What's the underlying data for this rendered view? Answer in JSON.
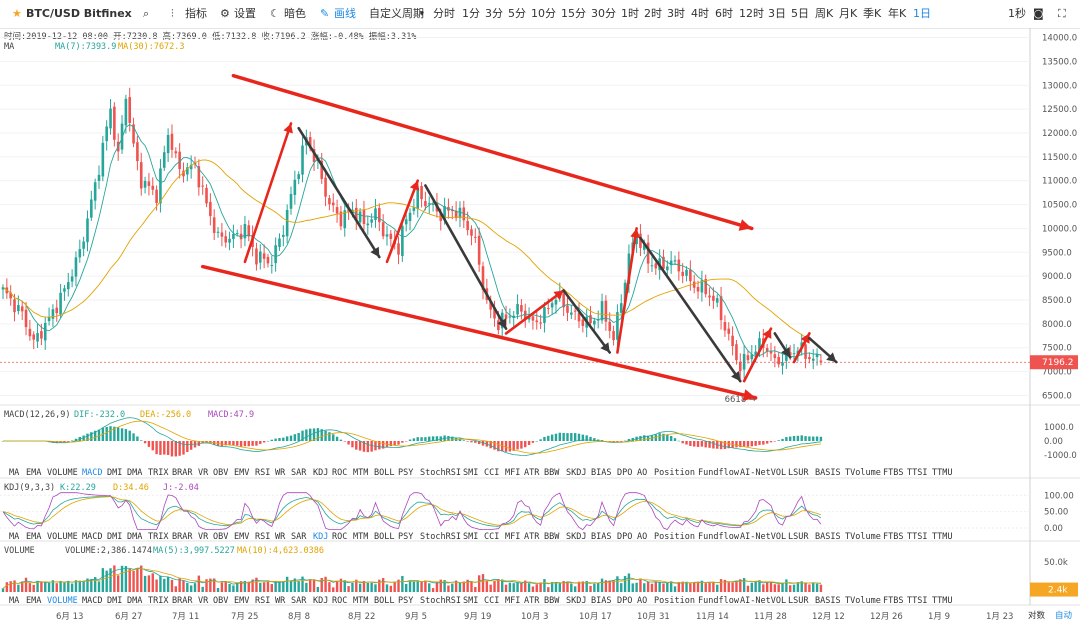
{
  "toolbar": {
    "symbol": "BTC/USD Bitfinex",
    "items": [
      "指标",
      "设置",
      "暗色",
      "画线",
      "自定义周期",
      "分时",
      "1分",
      "3分",
      "5分",
      "10分",
      "15分",
      "30分",
      "1时",
      "2时",
      "3时",
      "4时",
      "6时",
      "12时",
      "3日",
      "5日",
      "周K",
      "月K",
      "季K",
      "年K",
      "1日"
    ],
    "selected": "1日",
    "right_interval": "1秒"
  },
  "info_line": "时间:2019-12-12 08:00  开:7230.8  高:7369.0  低:7132.8  收:7196.2  涨幅:-0.48%  振幅:3.31%",
  "ma_label": "MA",
  "ma7_label": "MA(7):7393.9",
  "ma30_label": "MA(30):7672.3",
  "macd": {
    "label": "MACD(12,26,9)",
    "dif": "DIF:-232.0",
    "dea": "DEA:-256.0",
    "macd": "MACD:47.9"
  },
  "kdj": {
    "label": "KDJ(9,3,3)",
    "k": "K:22.29",
    "d": "D:34.46",
    "j": "J:-2.04"
  },
  "volume": {
    "label": "VOLUME",
    "value": "VOLUME:2,386.1474",
    "ma5": "MA(5):3,997.5227",
    "ma10": "MA(10):4,623.0386",
    "last_badge": "2.4k"
  },
  "indicator_tabs": [
    "MA",
    "EMA",
    "VOLUME",
    "MACD",
    "DMI",
    "DMA",
    "TRIX",
    "BRAR",
    "VR",
    "OBV",
    "EMV",
    "RSI",
    "WR",
    "SAR",
    "KDJ",
    "ROC",
    "MTM",
    "BOLL",
    "PSY",
    "StochRSI",
    "SMI",
    "CCI",
    "MFI",
    "ATR",
    "BBW",
    "SKDJ",
    "BIAS",
    "DPO",
    "AO",
    "Position",
    "Fundflow",
    "AI-NetVOL",
    "LSUR",
    "BASIS",
    "TVolume",
    "FTBS",
    "TTSI",
    "TTMU"
  ],
  "tabs_active_row1": "MACD",
  "tabs_active_row2": "KDJ",
  "tabs_active_row3": "VOLUME",
  "price_axis": [
    "14000.0",
    "13500.0",
    "13000.0",
    "12500.0",
    "12000.0",
    "11500.0",
    "11000.0",
    "10500.0",
    "10000.0",
    "9500.0",
    "9000.0",
    "8500.0",
    "8000.0",
    "7500.0",
    "7000.0",
    "6500.0"
  ],
  "last_price": "7196.2",
  "low_marker": "6618",
  "macd_axis": [
    "1000.0",
    "0.00",
    "-1000.0"
  ],
  "kdj_axis": [
    "100.00",
    "50.00",
    "0.00"
  ],
  "vol_axis": [
    "50.0k"
  ],
  "date_labels": [
    "6月 13",
    "6月 27",
    "7月 11",
    "7月 25",
    "8月 8",
    "8月 22",
    "9月 5",
    "9月 19",
    "10月 3",
    "10月 17",
    "10月 31",
    "11月 14",
    "11月 28",
    "12月 12",
    "12月 26",
    "1月 9",
    "1月 23"
  ],
  "bottom_right": {
    "log": "对数",
    "auto": "自动"
  },
  "chart_data": {
    "type": "candlestick",
    "symbol": "BTC/USD",
    "interval": "1日",
    "ylim": [
      6300,
      14200
    ],
    "last": {
      "time": "2019-12-12 08:00",
      "open": 7230.8,
      "high": 7369.0,
      "low": 7132.8,
      "close": 7196.2
    },
    "close_anchors": [
      [
        0,
        8700
      ],
      [
        5,
        8200
      ],
      [
        8,
        7600
      ],
      [
        12,
        8100
      ],
      [
        16,
        8700
      ],
      [
        20,
        9500
      ],
      [
        24,
        10900
      ],
      [
        28,
        12500
      ],
      [
        30,
        11500
      ],
      [
        32,
        12800
      ],
      [
        34,
        11700
      ],
      [
        36,
        11000
      ],
      [
        40,
        10700
      ],
      [
        43,
        12000
      ],
      [
        46,
        11200
      ],
      [
        50,
        11300
      ],
      [
        53,
        10500
      ],
      [
        56,
        9800
      ],
      [
        60,
        9800
      ],
      [
        63,
        10000
      ],
      [
        66,
        9400
      ],
      [
        70,
        9300
      ],
      [
        73,
        10000
      ],
      [
        76,
        11000
      ],
      [
        79,
        11900
      ],
      [
        82,
        11300
      ],
      [
        85,
        10500
      ],
      [
        88,
        10200
      ],
      [
        91,
        10400
      ],
      [
        94,
        10100
      ],
      [
        97,
        10300
      ],
      [
        100,
        9800
      ],
      [
        103,
        9600
      ],
      [
        105,
        10200
      ],
      [
        108,
        10700
      ],
      [
        111,
        10500
      ],
      [
        114,
        10300
      ],
      [
        117,
        10400
      ],
      [
        120,
        10200
      ],
      [
        123,
        9700
      ],
      [
        126,
        8400
      ],
      [
        129,
        8000
      ],
      [
        132,
        8200
      ],
      [
        135,
        8300
      ],
      [
        138,
        8000
      ],
      [
        141,
        8200
      ],
      [
        144,
        8600
      ],
      [
        147,
        8300
      ],
      [
        150,
        8100
      ],
      [
        153,
        8000
      ],
      [
        156,
        8300
      ],
      [
        159,
        7700
      ],
      [
        161,
        8500
      ],
      [
        163,
        9400
      ],
      [
        165,
        9900
      ],
      [
        168,
        9300
      ],
      [
        171,
        9200
      ],
      [
        174,
        9300
      ],
      [
        177,
        9100
      ],
      [
        180,
        8800
      ],
      [
        183,
        8700
      ],
      [
        186,
        8400
      ],
      [
        189,
        7700
      ],
      [
        192,
        7100
      ],
      [
        195,
        7400
      ],
      [
        198,
        7600
      ],
      [
        201,
        7200
      ],
      [
        204,
        7300
      ],
      [
        207,
        7500
      ],
      [
        210,
        7300
      ],
      [
        213,
        7200
      ]
    ],
    "annotations": [
      {
        "type": "channel-upper",
        "from": [
          60,
          13200
        ],
        "to": [
          195,
          10000
        ]
      },
      {
        "type": "channel-lower",
        "from": [
          52,
          9200
        ],
        "to": [
          196,
          6450
        ]
      },
      {
        "type": "up-arrow",
        "from": [
          63,
          9300
        ],
        "to": [
          75,
          12200
        ]
      },
      {
        "type": "down-arrow",
        "from": [
          77,
          12100
        ],
        "to": [
          98,
          9400
        ]
      },
      {
        "type": "up-arrow",
        "from": [
          100,
          9300
        ],
        "to": [
          108,
          11000
        ]
      },
      {
        "type": "down-arrow",
        "from": [
          110,
          10900
        ],
        "to": [
          131,
          7900
        ]
      },
      {
        "type": "up-arrow",
        "from": [
          131,
          7800
        ],
        "to": [
          146,
          8700
        ]
      },
      {
        "type": "down-arrow",
        "from": [
          146,
          8700
        ],
        "to": [
          158,
          7400
        ]
      },
      {
        "type": "up-arrow",
        "from": [
          160,
          7400
        ],
        "to": [
          165,
          10000
        ]
      },
      {
        "type": "down-arrow",
        "from": [
          166,
          9800
        ],
        "to": [
          192,
          6800
        ]
      },
      {
        "type": "up-arrow",
        "from": [
          193,
          6800
        ],
        "to": [
          200,
          7900
        ]
      },
      {
        "type": "down-arrow",
        "from": [
          201,
          7800
        ],
        "to": [
          205,
          7300
        ]
      },
      {
        "type": "up-arrow",
        "from": [
          206,
          7200
        ],
        "to": [
          210,
          7800
        ]
      },
      {
        "type": "down-arrow",
        "from": [
          210,
          7700
        ],
        "to": [
          217,
          7200
        ]
      }
    ]
  },
  "colors": {
    "up": "#26a69a",
    "down": "#ef5350",
    "ma7": "#26a69a",
    "ma30": "#e0a300",
    "arrow_red": "#e8261c",
    "arrow_gray": "#3a3a3a",
    "active": "#1e88e5"
  }
}
